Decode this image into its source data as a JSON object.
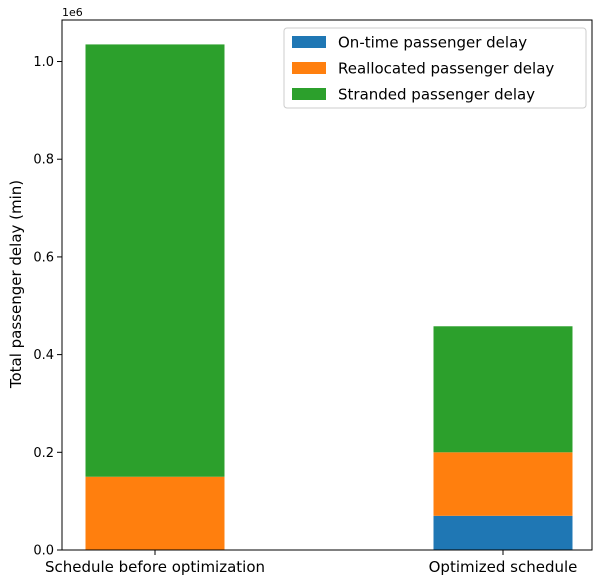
{
  "chart_data": {
    "type": "bar",
    "stacked": true,
    "categories": [
      "Schedule before optimization",
      "Optimized schedule"
    ],
    "series": [
      {
        "name": "On-time passenger delay",
        "color": "#1f77b4",
        "values": [
          0,
          70000
        ]
      },
      {
        "name": "Reallocated passenger delay",
        "color": "#ff7f0e",
        "values": [
          150000,
          130000
        ]
      },
      {
        "name": "Stranded passenger delay",
        "color": "#2ca02c",
        "values": [
          885000,
          258000
        ]
      }
    ],
    "title": "",
    "xlabel": "",
    "ylabel": "Total passenger delay (min)",
    "ylim": [
      0,
      1085000
    ],
    "yticks": [
      0,
      200000,
      400000,
      600000,
      800000,
      1000000
    ],
    "ytick_labels": [
      "0.0",
      "0.2",
      "0.4",
      "0.6",
      "0.8",
      "1.0"
    ],
    "y_offset_label": "1e6",
    "grid": false,
    "legend_position": "top-right"
  }
}
